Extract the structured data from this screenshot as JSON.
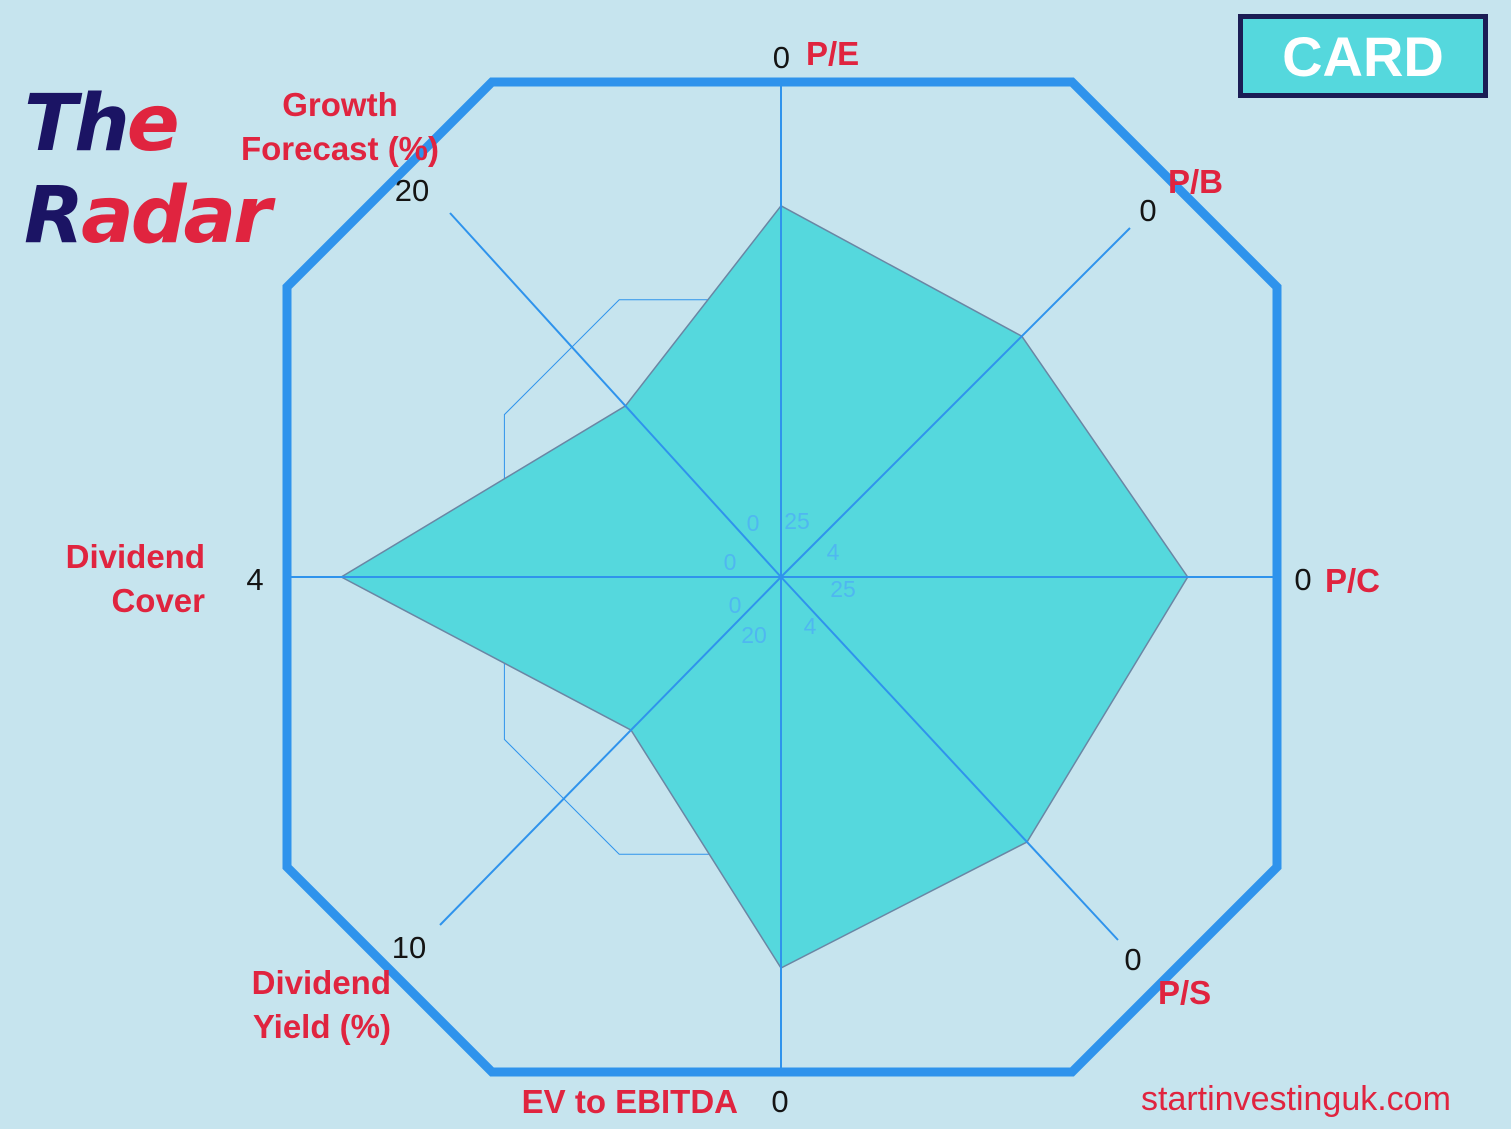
{
  "brand": {
    "title_line1_lead": "Th",
    "title_line1_rest": "e",
    "title_line2_lead": "R",
    "title_line2_rest": "adar",
    "ticker": "CARD",
    "footer": "startinvestinguk.com"
  },
  "colors": {
    "background": "#c6e4ee",
    "area_fill": "#55d8dd",
    "grid_line": "#2f93ec",
    "label_red": "#e0243f",
    "navy": "#1b1464"
  },
  "chart_data": {
    "type": "radar",
    "axes": [
      {
        "id": "pe",
        "label_lines": [
          "P/E"
        ],
        "outer_tick": "0",
        "inner_tick": "25",
        "value": 0.75
      },
      {
        "id": "pb",
        "label_lines": [
          "P/B"
        ],
        "outer_tick": "0",
        "inner_tick": "4",
        "value": 0.69
      },
      {
        "id": "pc",
        "label_lines": [
          "P/C"
        ],
        "outer_tick": "0",
        "inner_tick": "25",
        "value": 0.82
      },
      {
        "id": "ps",
        "label_lines": [
          "P/S"
        ],
        "outer_tick": "0",
        "inner_tick": "4",
        "value": 0.73
      },
      {
        "id": "ev",
        "label_lines": [
          "EV to EBITDA"
        ],
        "outer_tick": "0",
        "inner_tick": "20",
        "value": 0.79
      },
      {
        "id": "dy",
        "label_lines": [
          "Dividend",
          "Yield (%)"
        ],
        "outer_tick": "10",
        "inner_tick": "0",
        "value": 0.44
      },
      {
        "id": "dc",
        "label_lines": [
          "Dividend",
          "Cover"
        ],
        "outer_tick": "4",
        "inner_tick": "0",
        "value": 0.89
      },
      {
        "id": "gf",
        "label_lines": [
          "Growth",
          "Forecast (%)"
        ],
        "outer_tick": "20",
        "inner_tick": "0",
        "value": 0.47
      }
    ],
    "grid": true
  }
}
